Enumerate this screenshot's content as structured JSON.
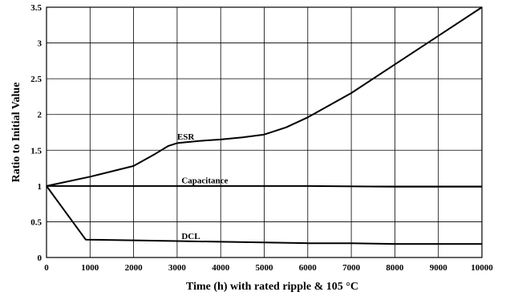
{
  "chart_data": {
    "type": "line",
    "xlabel": "Time (h) with rated ripple & 105 °C",
    "ylabel": "Ratio to Initial Value",
    "xlim": [
      0,
      10000
    ],
    "ylim": [
      0,
      3.5
    ],
    "x_ticks": [
      0,
      1000,
      2000,
      3000,
      4000,
      5000,
      6000,
      7000,
      8000,
      9000,
      10000
    ],
    "y_ticks": [
      0,
      0.5,
      1,
      1.5,
      2,
      2.5,
      3,
      3.5
    ],
    "x_tick_labels": [
      "0",
      "1000",
      "2000",
      "3000",
      "4000",
      "5000",
      "6000",
      "7000",
      "8000",
      "9000",
      "10000"
    ],
    "y_tick_labels": [
      "0",
      "0.5",
      "1",
      "1.5",
      "2",
      "2.5",
      "3",
      "3.5"
    ],
    "grid": true,
    "legend": "none",
    "series": [
      {
        "name": "ESR",
        "label": "ESR",
        "x": [
          0,
          1000,
          2000,
          2500,
          2800,
          3000,
          3500,
          4000,
          4500,
          5000,
          5500,
          6000,
          7000,
          8000,
          9000,
          10000
        ],
        "y": [
          1.0,
          1.13,
          1.28,
          1.45,
          1.56,
          1.6,
          1.63,
          1.65,
          1.68,
          1.72,
          1.82,
          1.96,
          2.3,
          2.7,
          3.1,
          3.5
        ]
      },
      {
        "name": "Capacitance",
        "label": "Capacitance",
        "x": [
          0,
          2000,
          4000,
          6000,
          8000,
          10000
        ],
        "y": [
          1.0,
          1.0,
          1.0,
          1.0,
          0.99,
          0.99
        ]
      },
      {
        "name": "DCL",
        "label": "DCL",
        "x": [
          0,
          900,
          2000,
          3000,
          4000,
          5000,
          6000,
          7000,
          8000,
          9000,
          10000
        ],
        "y": [
          1.0,
          0.25,
          0.24,
          0.23,
          0.22,
          0.21,
          0.2,
          0.2,
          0.19,
          0.19,
          0.19
        ]
      }
    ]
  }
}
